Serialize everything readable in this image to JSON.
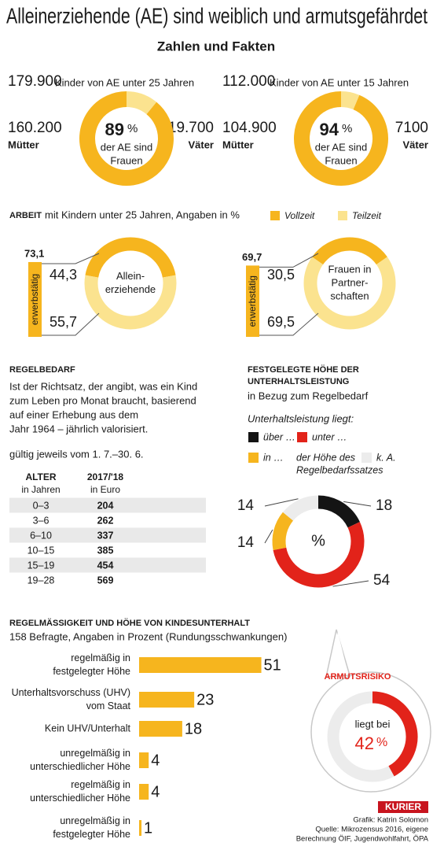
{
  "header": {
    "title": "Alleinerziehende (AE) sind weiblich und armutsgefährdet",
    "subtitle": "Zahlen und Fakten"
  },
  "chart_data": [
    {
      "type": "donut",
      "total": {
        "value": 179900,
        "label": "179.900"
      },
      "total_text": "Kinder von AE unter 25 Jahren",
      "categories": [
        "Mütter",
        "Väter"
      ],
      "values": [
        160200,
        19700
      ],
      "value_labels": [
        "160.200",
        "19.700"
      ],
      "colors": [
        "#f6b51e",
        "#fbe38f"
      ],
      "center_value": 89,
      "center_unit": "%",
      "center_text": [
        "der AE sind",
        "Frauen"
      ]
    },
    {
      "type": "donut",
      "total": {
        "value": 112000,
        "label": "112.000"
      },
      "total_text": "Kinder von AE unter 15 Jahren",
      "categories": [
        "Mütter",
        "Väter"
      ],
      "values": [
        104900,
        7100
      ],
      "value_labels": [
        "104.900",
        "7100"
      ],
      "colors": [
        "#f6b51e",
        "#fbe38f"
      ],
      "center_value": 94,
      "center_unit": "%",
      "center_text": [
        "der AE sind",
        "Frauen"
      ]
    },
    {
      "type": "donut-group",
      "title": "ARBEIT",
      "subtitle": "mit Kindern unter 25 Jahren, Angaben in %",
      "categories": [
        [
          "Allein-",
          "erziehende"
        ],
        [
          "Frauen in",
          "Partner-",
          "schaften"
        ]
      ],
      "series": [
        {
          "name": "Vollzeit",
          "color": "#f6b51e",
          "values": [
            44.3,
            30.5
          ],
          "value_labels": [
            "44,3",
            "30,5"
          ]
        },
        {
          "name": "Teilzeit",
          "color": "#fbe38f",
          "values": [
            55.7,
            69.5
          ],
          "value_labels": [
            "55,7",
            "69,5"
          ]
        }
      ],
      "employed_text": "erwerbstätig",
      "employed": [
        73.1,
        69.7
      ],
      "employed_labels": [
        "73,1",
        "69,7"
      ]
    },
    {
      "type": "pie",
      "title": [
        "FESTGELEGTE HÖHE DER",
        "UNTERHALTSLEISTUNG"
      ],
      "subtitle": "in Bezug zum Regelbedarf",
      "note": "Unterhaltsleistung liegt:",
      "center_text": "%",
      "categories": [
        [
          "über …"
        ],
        [
          "unter …"
        ],
        [
          "in …",
          "der Höhe des",
          "Regelbedarfssatzes"
        ],
        [
          "k. A."
        ]
      ],
      "values": [
        18,
        54,
        14,
        14
      ],
      "colors": [
        "#141414",
        "#e2231a",
        "#f6b51e",
        "#ececec"
      ]
    },
    {
      "type": "bar",
      "title": "REGELMÄSSIGKEIT UND HÖHE VON KINDESUNTERHALT",
      "subtitle": "158 Befragte, Angaben in Prozent (Rundungsschwankungen)",
      "categories": [
        [
          "regelmäßig in",
          "festgelegter Höhe"
        ],
        [
          "Unterhaltsvorschuss (UHV)",
          "vom Staat"
        ],
        [
          "Kein UHV/Unterhalt"
        ],
        [
          "unregelmäßig in",
          "unterschiedlicher Höhe"
        ],
        [
          "regelmäßig in",
          "unterschiedlicher Höhe"
        ],
        [
          "unregelmäßig in",
          "festgelegter Höhe"
        ]
      ],
      "values": [
        51,
        23,
        18,
        4,
        4,
        1
      ],
      "color": "#f6b51e"
    },
    {
      "type": "gauge",
      "title": "ARMUTSRISIKO",
      "center_text": "liegt bei",
      "value": 42,
      "unit": "%",
      "color": "#e2231a",
      "track_color": "#ececec"
    }
  ],
  "regelbedarf": {
    "title": "REGELBEDARF",
    "text": [
      "Ist der Richtsatz, der angibt, was ein Kind",
      "zum Leben pro Monat braucht, basierend",
      "auf einer Erhebung aus dem",
      "Jahr 1964 – jährlich valorisiert."
    ],
    "validity": "gültig jeweils vom 1. 7.–30. 6.",
    "table": {
      "header": [
        [
          "ALTER",
          "in Jahren"
        ],
        [
          "2017/'18",
          "in Euro"
        ]
      ],
      "rows": [
        [
          "0–3",
          204
        ],
        [
          "3–6",
          262
        ],
        [
          "6–10",
          337
        ],
        [
          "10–15",
          385
        ],
        [
          "15–19",
          454
        ],
        [
          "19–28",
          569
        ]
      ]
    }
  },
  "footer": {
    "credits": [
      "Grafik: Katrin Solomon",
      "Quelle: Mikrozensus 2016, eigene",
      "Berechnung ÖIF, Jugendwohlfahrt, ÖPA"
    ],
    "logo": "KURIER"
  }
}
